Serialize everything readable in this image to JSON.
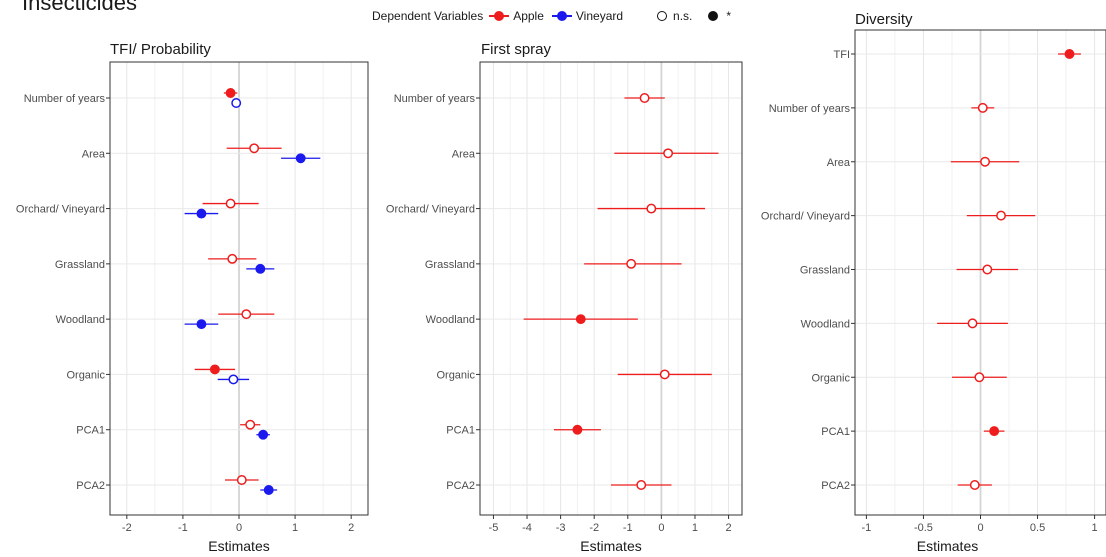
{
  "page_title": "Insecticides",
  "legend": {
    "title": "Dependent Variables",
    "entries": [
      {
        "label": "Apple",
        "color": "#ee1c1c"
      },
      {
        "label": "Vineyard",
        "color": "#1a1aee"
      }
    ],
    "significance": [
      {
        "label": "n.s.",
        "filled": false
      },
      {
        "label": "*",
        "filled": true
      }
    ]
  },
  "chart_data": [
    {
      "type": "scatter",
      "title": "TFI/ Probability",
      "xlabel": "Estimates",
      "ylabel": "",
      "xlim": [
        -2.3,
        2.3
      ],
      "xticks": [
        -2,
        -1,
        0,
        1,
        2
      ],
      "xtick_labels": [
        "-2",
        "-1",
        "0",
        "1",
        "2"
      ],
      "categories": [
        "Number of years",
        "Area",
        "Orchard/ Vineyard",
        "Grassland",
        "Woodland",
        "Organic",
        "PCA1",
        "PCA2"
      ],
      "grid": true,
      "series": [
        {
          "name": "Apple",
          "color": "#ee1c1c",
          "estimate": [
            -0.15,
            0.27,
            -0.15,
            -0.12,
            0.13,
            -0.43,
            0.2,
            0.05
          ],
          "ci_low": [
            -0.27,
            -0.22,
            -0.65,
            -0.55,
            -0.37,
            -0.79,
            0.02,
            -0.25
          ],
          "ci_high": [
            -0.03,
            0.76,
            0.35,
            0.31,
            0.63,
            -0.07,
            0.38,
            0.35
          ],
          "significant": [
            true,
            false,
            false,
            false,
            false,
            true,
            false,
            false
          ]
        },
        {
          "name": "Vineyard",
          "color": "#1a1aee",
          "estimate": [
            -0.05,
            1.1,
            -0.67,
            0.38,
            -0.67,
            -0.1,
            0.43,
            0.53
          ],
          "ci_low": [
            -0.12,
            0.75,
            -0.97,
            0.13,
            -0.97,
            -0.38,
            0.31,
            0.38
          ],
          "ci_high": [
            0.02,
            1.45,
            -0.37,
            0.63,
            -0.37,
            0.18,
            0.55,
            0.68
          ],
          "significant": [
            false,
            true,
            true,
            true,
            true,
            false,
            true,
            true
          ]
        }
      ]
    },
    {
      "type": "scatter",
      "title": "First spray",
      "xlabel": "Estimates",
      "ylabel": "",
      "xlim": [
        -5.4,
        2.4
      ],
      "xticks": [
        -5,
        -4,
        -3,
        -2,
        -1,
        0,
        1,
        2
      ],
      "xtick_labels": [
        "-5",
        "-4",
        "-3",
        "-2",
        "-1",
        "0",
        "1",
        "2"
      ],
      "categories": [
        "Number of years",
        "Area",
        "Orchard/ Vineyard",
        "Grassland",
        "Woodland",
        "Organic",
        "PCA1",
        "PCA2"
      ],
      "grid": true,
      "series": [
        {
          "name": "Apple",
          "color": "#ee1c1c",
          "estimate": [
            -0.5,
            0.2,
            -0.3,
            -0.9,
            -2.4,
            0.1,
            -2.5,
            -0.6
          ],
          "ci_low": [
            -1.1,
            -1.4,
            -1.9,
            -2.3,
            -4.1,
            -1.3,
            -3.2,
            -1.5
          ],
          "ci_high": [
            0.1,
            1.7,
            1.3,
            0.6,
            -0.7,
            1.5,
            -1.8,
            0.3
          ],
          "significant": [
            false,
            false,
            false,
            false,
            true,
            false,
            true,
            false
          ]
        }
      ]
    },
    {
      "type": "scatter",
      "title": "Diversity",
      "xlabel": "Estimates",
      "ylabel": "",
      "xlim": [
        -1.1,
        1.1
      ],
      "xticks": [
        -1,
        -0.5,
        0,
        0.5,
        1
      ],
      "xtick_labels": [
        "-1",
        "-0.5",
        "0",
        "0.5",
        "1"
      ],
      "categories": [
        "TFI",
        "Number of years",
        "Area",
        "Orchard/ Vineyard",
        "Grassland",
        "Woodland",
        "Organic",
        "PCA1",
        "PCA2"
      ],
      "grid": true,
      "series": [
        {
          "name": "Apple",
          "color": "#ee1c1c",
          "estimate": [
            0.78,
            0.02,
            0.04,
            0.18,
            0.06,
            -0.07,
            -0.01,
            0.12,
            -0.05
          ],
          "ci_low": [
            0.68,
            -0.08,
            -0.26,
            -0.12,
            -0.21,
            -0.38,
            -0.25,
            0.03,
            -0.2
          ],
          "ci_high": [
            0.88,
            0.12,
            0.34,
            0.48,
            0.33,
            0.24,
            0.23,
            0.21,
            0.1
          ],
          "significant": [
            true,
            false,
            false,
            false,
            false,
            false,
            false,
            true,
            false
          ]
        }
      ]
    }
  ]
}
